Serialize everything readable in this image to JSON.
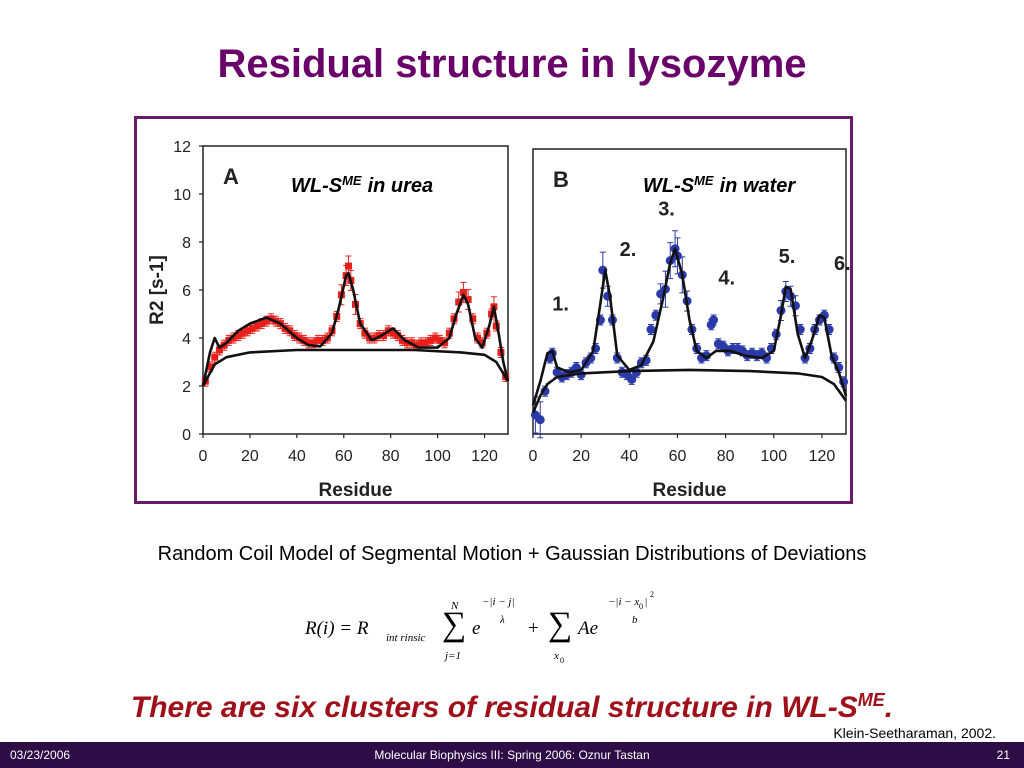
{
  "slide": {
    "title": "Residual structure in lysozyme",
    "caption": "Random Coil Model of Segmental Motion + Gaussian Distributions of Deviations",
    "conclusion_main": "There are six clusters of residual structure in WL-S",
    "conclusion_sup": "ME",
    "conclusion_end": ".",
    "citation": "Klein-Seetharaman, 2002.",
    "footer": {
      "date": "03/23/2006",
      "course": "Molecular Biophysics III: Spring 2006: Oznur Tastan",
      "page": "21"
    }
  },
  "equation": {
    "lhs": "R(i) = R",
    "lhs_sub": "int rinsic",
    "sum1_upper": "N",
    "sum1_lower": "j=1",
    "term1_base": "e",
    "term1_exp_num": "−|i − j|",
    "term1_exp_den": "λ",
    "plus": "+",
    "sum2_lower": "x",
    "sum2_lower_sub": "0",
    "term2_base": "Ae",
    "term2_exp_num": "−|i − x",
    "term2_exp_num_sub": "0",
    "term2_exp_num_end": "|",
    "term2_exp_sup": "2",
    "term2_exp_den": "b"
  },
  "colors": {
    "title": "#6a006a",
    "panel_a_points": "#e8201c",
    "panel_b_points": "#2a3aa8",
    "fit": "#111111",
    "conclusion": "#a0101a",
    "footer_bg": "#2e0c46"
  },
  "chart_data": [
    {
      "type": "scatter",
      "panel_label": "A",
      "annotation": "WL-S",
      "annotation_sup": "ME",
      "annotation_end": "in urea",
      "xlabel": "Residue",
      "ylabel": "R2 [s-1]",
      "xlim": [
        0,
        130
      ],
      "ylim": [
        0,
        12
      ],
      "xticks": [
        "0",
        "20",
        "40",
        "60",
        "80",
        "100",
        "120"
      ],
      "yticks": [
        "0",
        "2",
        "4",
        "6",
        "8",
        "10",
        "12"
      ],
      "points": [
        [
          1,
          2.2
        ],
        [
          3,
          2.8
        ],
        [
          5,
          3.2
        ],
        [
          7,
          3.5
        ],
        [
          9,
          3.7
        ],
        [
          11,
          3.9
        ],
        [
          13,
          4.0
        ],
        [
          15,
          4.1
        ],
        [
          17,
          4.2
        ],
        [
          19,
          4.3
        ],
        [
          21,
          4.4
        ],
        [
          23,
          4.5
        ],
        [
          25,
          4.6
        ],
        [
          27,
          4.7
        ],
        [
          29,
          4.8
        ],
        [
          31,
          4.7
        ],
        [
          33,
          4.6
        ],
        [
          35,
          4.4
        ],
        [
          37,
          4.3
        ],
        [
          39,
          4.1
        ],
        [
          41,
          4.0
        ],
        [
          43,
          3.9
        ],
        [
          45,
          3.8
        ],
        [
          47,
          3.8
        ],
        [
          49,
          3.9
        ],
        [
          51,
          3.9
        ],
        [
          53,
          4.0
        ],
        [
          55,
          4.3
        ],
        [
          57,
          4.9
        ],
        [
          59,
          5.8
        ],
        [
          61,
          6.6
        ],
        [
          62,
          7.0
        ],
        [
          63,
          6.4
        ],
        [
          65,
          5.4
        ],
        [
          67,
          4.6
        ],
        [
          69,
          4.2
        ],
        [
          71,
          4.0
        ],
        [
          73,
          4.0
        ],
        [
          75,
          4.1
        ],
        [
          77,
          4.1
        ],
        [
          79,
          4.3
        ],
        [
          81,
          4.2
        ],
        [
          83,
          4.1
        ],
        [
          85,
          3.9
        ],
        [
          87,
          3.8
        ],
        [
          89,
          3.8
        ],
        [
          91,
          3.7
        ],
        [
          93,
          3.8
        ],
        [
          95,
          3.8
        ],
        [
          97,
          3.9
        ],
        [
          99,
          4.0
        ],
        [
          101,
          3.9
        ],
        [
          103,
          3.8
        ],
        [
          105,
          4.2
        ],
        [
          107,
          4.8
        ],
        [
          109,
          5.5
        ],
        [
          111,
          5.9
        ],
        [
          113,
          5.6
        ],
        [
          115,
          4.8
        ],
        [
          117,
          4.0
        ],
        [
          119,
          3.8
        ],
        [
          121,
          4.2
        ],
        [
          123,
          5.0
        ],
        [
          124,
          5.3
        ],
        [
          125,
          4.5
        ],
        [
          127,
          3.4
        ],
        [
          129,
          2.4
        ]
      ],
      "fit_segmental": [
        [
          0,
          2.0
        ],
        [
          5,
          2.9
        ],
        [
          10,
          3.2
        ],
        [
          20,
          3.4
        ],
        [
          40,
          3.5
        ],
        [
          65,
          3.5
        ],
        [
          90,
          3.5
        ],
        [
          110,
          3.4
        ],
        [
          120,
          3.3
        ],
        [
          125,
          3.0
        ],
        [
          130,
          2.2
        ]
      ],
      "fit_total": [
        [
          0,
          2.0
        ],
        [
          3,
          3.4
        ],
        [
          5,
          4.0
        ],
        [
          7,
          3.6
        ],
        [
          10,
          3.8
        ],
        [
          15,
          4.3
        ],
        [
          20,
          4.6
        ],
        [
          27,
          4.85
        ],
        [
          33,
          4.6
        ],
        [
          40,
          4.0
        ],
        [
          45,
          3.7
        ],
        [
          50,
          3.65
        ],
        [
          55,
          4.2
        ],
        [
          58,
          5.3
        ],
        [
          61,
          6.6
        ],
        [
          62,
          6.7
        ],
        [
          64,
          6.0
        ],
        [
          67,
          4.6
        ],
        [
          72,
          3.9
        ],
        [
          76,
          4.1
        ],
        [
          81,
          4.4
        ],
        [
          86,
          3.9
        ],
        [
          92,
          3.6
        ],
        [
          100,
          3.6
        ],
        [
          105,
          4.0
        ],
        [
          108,
          5.0
        ],
        [
          111,
          5.8
        ],
        [
          113,
          5.4
        ],
        [
          116,
          4.0
        ],
        [
          119,
          3.6
        ],
        [
          122,
          4.5
        ],
        [
          124,
          5.3
        ],
        [
          126,
          4.2
        ],
        [
          128,
          3.0
        ],
        [
          130,
          2.2
        ]
      ]
    },
    {
      "type": "scatter",
      "panel_label": "B",
      "annotation": "WL-S",
      "annotation_sup": "ME",
      "annotation_end": "in water",
      "xlabel": "Residue",
      "ylabel": "",
      "xlim": [
        0,
        130
      ],
      "ylim": [
        0,
        12
      ],
      "xticks": [
        "0",
        "20",
        "40",
        "60",
        "80",
        "100",
        "120"
      ],
      "cluster_labels": [
        {
          "text": "1.",
          "x": 8,
          "y": 5.2
        },
        {
          "text": "2.",
          "x": 36,
          "y": 7.5
        },
        {
          "text": "3.",
          "x": 52,
          "y": 9.2
        },
        {
          "text": "4.",
          "x": 77,
          "y": 6.3
        },
        {
          "text": "5.",
          "x": 102,
          "y": 7.2
        },
        {
          "text": "6.",
          "x": 125,
          "y": 6.9
        }
      ],
      "points": [
        [
          1,
          0.8
        ],
        [
          3,
          0.6
        ],
        [
          5,
          1.8
        ],
        [
          7,
          3.2
        ],
        [
          8,
          3.4
        ],
        [
          10,
          2.6
        ],
        [
          12,
          2.4
        ],
        [
          14,
          2.5
        ],
        [
          16,
          2.6
        ],
        [
          18,
          2.8
        ],
        [
          20,
          2.5
        ],
        [
          22,
          3.0
        ],
        [
          24,
          3.2
        ],
        [
          26,
          3.6
        ],
        [
          28,
          4.8
        ],
        [
          29,
          6.9
        ],
        [
          31,
          5.8
        ],
        [
          33,
          4.8
        ],
        [
          35,
          3.2
        ],
        [
          37,
          2.6
        ],
        [
          39,
          2.5
        ],
        [
          41,
          2.3
        ],
        [
          43,
          2.6
        ],
        [
          45,
          3.0
        ],
        [
          47,
          3.1
        ],
        [
          49,
          4.4
        ],
        [
          51,
          5.0
        ],
        [
          53,
          5.9
        ],
        [
          55,
          6.1
        ],
        [
          57,
          7.3
        ],
        [
          59,
          7.8
        ],
        [
          60,
          7.5
        ],
        [
          62,
          6.7
        ],
        [
          64,
          5.6
        ],
        [
          66,
          4.4
        ],
        [
          68,
          3.6
        ],
        [
          70,
          3.2
        ],
        [
          72,
          3.3
        ],
        [
          74,
          4.6
        ],
        [
          75,
          4.8
        ],
        [
          77,
          3.8
        ],
        [
          79,
          3.7
        ],
        [
          81,
          3.5
        ],
        [
          83,
          3.6
        ],
        [
          85,
          3.6
        ],
        [
          87,
          3.5
        ],
        [
          89,
          3.3
        ],
        [
          91,
          3.4
        ],
        [
          93,
          3.3
        ],
        [
          95,
          3.4
        ],
        [
          97,
          3.2
        ],
        [
          99,
          3.6
        ],
        [
          101,
          4.2
        ],
        [
          103,
          5.2
        ],
        [
          105,
          6.0
        ],
        [
          107,
          5.8
        ],
        [
          109,
          5.4
        ],
        [
          111,
          4.4
        ],
        [
          113,
          3.2
        ],
        [
          115,
          3.6
        ],
        [
          117,
          4.4
        ],
        [
          119,
          4.8
        ],
        [
          121,
          5.0
        ],
        [
          123,
          4.4
        ],
        [
          125,
          3.2
        ],
        [
          127,
          2.8
        ],
        [
          129,
          2.2
        ]
      ],
      "fit_segmental": [
        [
          0,
          0.9
        ],
        [
          3,
          1.6
        ],
        [
          6,
          2.1
        ],
        [
          10,
          2.4
        ],
        [
          20,
          2.55
        ],
        [
          40,
          2.65
        ],
        [
          65,
          2.7
        ],
        [
          90,
          2.65
        ],
        [
          110,
          2.55
        ],
        [
          120,
          2.4
        ],
        [
          125,
          2.1
        ],
        [
          130,
          1.4
        ]
      ],
      "fit_total": [
        [
          0,
          1.2
        ],
        [
          3,
          2.2
        ],
        [
          6,
          3.4
        ],
        [
          8,
          3.5
        ],
        [
          10,
          2.8
        ],
        [
          15,
          2.6
        ],
        [
          20,
          2.7
        ],
        [
          25,
          3.5
        ],
        [
          28,
          5.5
        ],
        [
          30,
          6.9
        ],
        [
          32,
          5.8
        ],
        [
          35,
          3.3
        ],
        [
          40,
          2.7
        ],
        [
          45,
          2.9
        ],
        [
          50,
          3.9
        ],
        [
          54,
          5.7
        ],
        [
          57,
          7.2
        ],
        [
          59,
          7.8
        ],
        [
          62,
          6.7
        ],
        [
          65,
          4.8
        ],
        [
          68,
          3.5
        ],
        [
          72,
          3.2
        ],
        [
          76,
          3.5
        ],
        [
          82,
          3.5
        ],
        [
          88,
          3.3
        ],
        [
          95,
          3.2
        ],
        [
          100,
          3.5
        ],
        [
          103,
          5.0
        ],
        [
          105,
          6.2
        ],
        [
          107,
          6.1
        ],
        [
          110,
          4.2
        ],
        [
          113,
          3.2
        ],
        [
          116,
          4.0
        ],
        [
          119,
          5.0
        ],
        [
          121,
          4.9
        ],
        [
          124,
          3.3
        ],
        [
          127,
          2.6
        ],
        [
          130,
          1.6
        ]
      ]
    }
  ]
}
